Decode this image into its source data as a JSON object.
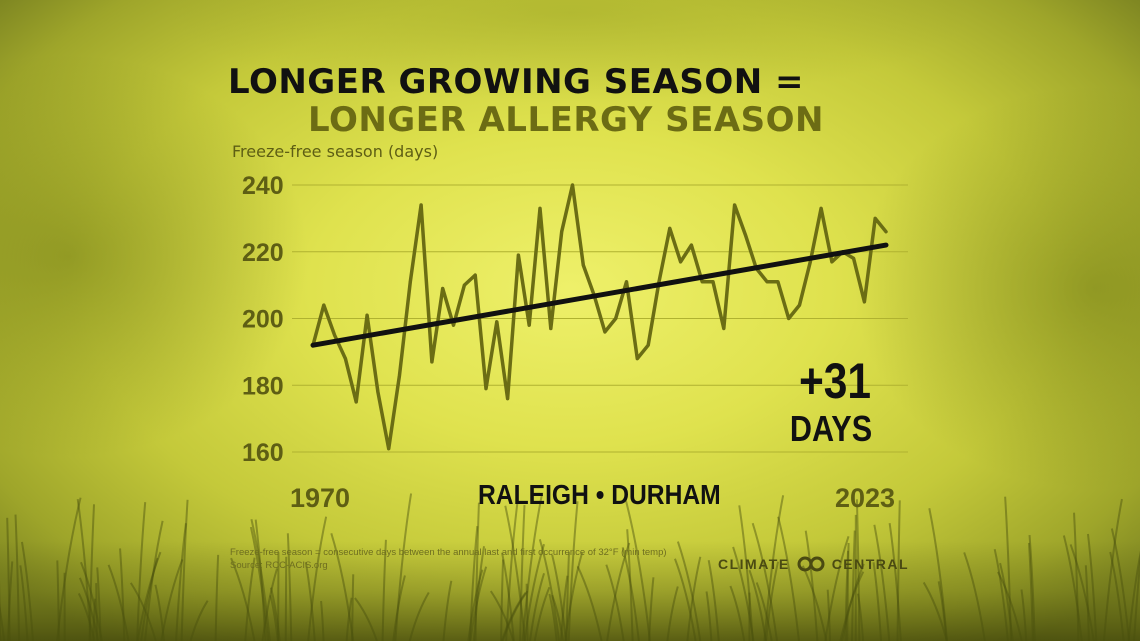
{
  "title_line1": "LONGER GROWING SEASON =",
  "title_line2": "LONGER ALLERGY SEASON",
  "location": "RALEIGH • DURHAM",
  "change": {
    "value": "+31",
    "unit": "DAYS"
  },
  "footnote": {
    "definition": "Freeze-free season = consecutive days between the annual last and first occurrence of 32°F (min temp)",
    "source": "Source: RCC-ACIS.org"
  },
  "logo": {
    "left_word": "CLIMATE",
    "right_word": "CENTRAL"
  },
  "colors": {
    "series": "#6b6d14",
    "trend": "#111111",
    "grid": "#b0b230",
    "text_dark": "#111111",
    "text_olive": "#6c6c14"
  },
  "chart_data": {
    "type": "line",
    "ylabel": "Freeze-free season (days)",
    "ylim": [
      160,
      240
    ],
    "yticks": [
      160,
      180,
      200,
      220,
      240
    ],
    "xlim": [
      1970,
      2023
    ],
    "xtick_labels": [
      "1970",
      "2023"
    ],
    "x": [
      1970,
      1971,
      1972,
      1973,
      1974,
      1975,
      1976,
      1977,
      1978,
      1979,
      1980,
      1981,
      1982,
      1983,
      1984,
      1985,
      1986,
      1987,
      1988,
      1989,
      1990,
      1991,
      1992,
      1993,
      1994,
      1995,
      1996,
      1997,
      1998,
      1999,
      2000,
      2001,
      2002,
      2003,
      2004,
      2005,
      2006,
      2007,
      2008,
      2009,
      2010,
      2011,
      2012,
      2013,
      2014,
      2015,
      2016,
      2017,
      2018,
      2019,
      2020,
      2021,
      2022,
      2023
    ],
    "series": [
      {
        "values": [
          192,
          204,
          195,
          188,
          175,
          201,
          178,
          161,
          183,
          211,
          234,
          187,
          209,
          198,
          210,
          213,
          179,
          199,
          176,
          219,
          198,
          233,
          197,
          226,
          240,
          216,
          207,
          196,
          200,
          211,
          188,
          192,
          211,
          227,
          217,
          222,
          211,
          211,
          197,
          234,
          225,
          215,
          211,
          211,
          200,
          204,
          217,
          233,
          217,
          220,
          218,
          205,
          230,
          226
        ]
      }
    ],
    "trend": {
      "type": "linear",
      "values": [
        192,
        222
      ]
    },
    "grid": "horizontal"
  }
}
